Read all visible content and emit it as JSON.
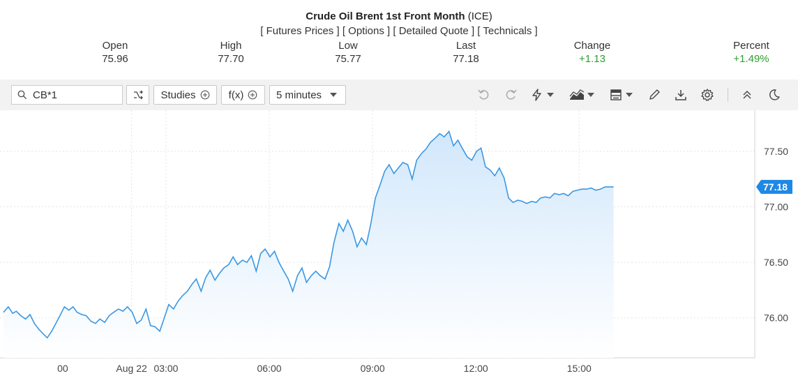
{
  "header": {
    "name": "Crude Oil Brent 1st Front Month",
    "exchange": "(ICE)",
    "links": [
      {
        "label": "[ Futures Prices ]"
      },
      {
        "label": "[ Options ]"
      },
      {
        "label": "[ Detailed Quote ]"
      },
      {
        "label": "[ Technicals ]"
      }
    ]
  },
  "quote": [
    {
      "label": "Open",
      "value": "75.96"
    },
    {
      "label": "High",
      "value": "77.70"
    },
    {
      "label": "Low",
      "value": "75.77"
    },
    {
      "label": "Last",
      "value": "77.18"
    },
    {
      "label": "Change",
      "value": "+1.13"
    },
    {
      "label": "Percent",
      "value": "+1.49%"
    }
  ],
  "toolbar": {
    "symbol": "CB*1",
    "studies_label": "Studies",
    "fx_label": "f(x)",
    "interval_label": "5 minutes",
    "icons": [
      "undo-icon",
      "redo-icon",
      "lightning-icon",
      "area-chart-icon",
      "template-icon",
      "pencil-icon",
      "download-icon",
      "gear-icon",
      "collapse-icon",
      "moon-icon"
    ]
  },
  "colors": {
    "line": "#3b97e3",
    "fill_top": "#cfe6fb",
    "positive": "#2ca02c",
    "last_tag": "#1e88e5"
  },
  "chart_data": {
    "type": "area",
    "title": "",
    "xlabel": "",
    "ylabel": "",
    "x_tick_labels": [
      "00",
      "Aug 22",
      "03:00",
      "06:00",
      "09:00",
      "12:00",
      "15:00"
    ],
    "x_tick_hours": [
      0,
      2,
      3,
      6,
      9,
      12,
      15
    ],
    "y_ticks": [
      76.0,
      76.5,
      77.0,
      77.5
    ],
    "y_tick_labels": [
      "76.00",
      "76.50",
      "77.00",
      "77.50"
    ],
    "ylim": [
      75.64,
      77.82
    ],
    "xlim_hours": [
      -1.72,
      20.1
    ],
    "grid": true,
    "last_value_label": "77.18",
    "series": [
      {
        "x_hours": [
          -1.72,
          -1.58,
          -1.45,
          -1.35,
          -1.22,
          -1.08,
          -0.95,
          -0.82,
          -0.7,
          -0.58,
          -0.45,
          -0.32,
          -0.2,
          -0.08,
          0.05,
          0.18,
          0.3,
          0.42,
          0.55,
          0.68,
          0.82,
          0.95,
          1.08,
          1.22,
          1.35,
          1.48,
          1.62,
          1.75,
          1.88,
          2.02,
          2.15,
          2.28,
          2.42,
          2.55,
          2.68,
          2.82,
          2.95,
          3.08,
          3.22,
          3.35,
          3.48,
          3.62,
          3.75,
          3.88,
          4.02,
          4.15,
          4.28,
          4.42,
          4.55,
          4.68,
          4.82,
          4.95,
          5.08,
          5.22,
          5.35,
          5.48,
          5.62,
          5.75,
          5.88,
          6.02,
          6.15,
          6.28,
          6.42,
          6.55,
          6.68,
          6.82,
          6.95,
          7.08,
          7.22,
          7.35,
          7.48,
          7.62,
          7.75,
          7.88,
          8.02,
          8.15,
          8.28,
          8.42,
          8.55,
          8.68,
          8.82,
          8.95,
          9.08,
          9.22,
          9.35,
          9.48,
          9.62,
          9.75,
          9.88,
          10.02,
          10.15,
          10.28,
          10.42,
          10.55,
          10.68,
          10.82,
          10.95,
          11.08,
          11.22,
          11.35,
          11.48,
          11.62,
          11.75,
          11.88,
          12.02,
          12.15,
          12.28,
          12.42,
          12.55,
          12.68,
          12.82,
          12.95,
          13.08,
          13.22,
          13.35,
          13.48,
          13.62,
          13.75,
          13.88,
          14.02,
          14.15,
          14.28,
          14.42,
          14.55,
          14.68,
          14.82,
          14.95,
          15.08,
          15.22,
          15.35,
          15.48,
          15.62,
          15.75,
          15.88,
          16.0
        ],
        "values": [
          76.05,
          76.1,
          76.04,
          76.06,
          76.02,
          75.99,
          76.03,
          75.95,
          75.9,
          75.86,
          75.82,
          75.88,
          75.95,
          76.02,
          76.1,
          76.07,
          76.1,
          76.05,
          76.03,
          76.02,
          75.97,
          75.95,
          75.99,
          75.96,
          76.02,
          76.05,
          76.08,
          76.06,
          76.1,
          76.05,
          75.95,
          75.98,
          76.08,
          75.93,
          75.92,
          75.88,
          76.0,
          76.12,
          76.08,
          76.15,
          76.2,
          76.24,
          76.3,
          76.35,
          76.24,
          76.36,
          76.43,
          76.34,
          76.4,
          76.45,
          76.48,
          76.55,
          76.48,
          76.52,
          76.5,
          76.56,
          76.42,
          76.58,
          76.62,
          76.55,
          76.6,
          76.5,
          76.42,
          76.35,
          76.24,
          76.38,
          76.45,
          76.32,
          76.38,
          76.42,
          76.38,
          76.35,
          76.46,
          76.68,
          76.85,
          76.78,
          76.88,
          76.78,
          76.64,
          76.72,
          76.66,
          76.85,
          77.08,
          77.2,
          77.32,
          77.38,
          77.3,
          77.35,
          77.4,
          77.38,
          77.25,
          77.42,
          77.48,
          77.52,
          77.58,
          77.62,
          77.66,
          77.63,
          77.68,
          77.55,
          77.6,
          77.52,
          77.45,
          77.42,
          77.5,
          77.53,
          77.36,
          77.33,
          77.28,
          77.35,
          77.26,
          77.08,
          77.04,
          77.06,
          77.05,
          77.03,
          77.05,
          77.04,
          77.08,
          77.09,
          77.08,
          77.12,
          77.11,
          77.12,
          77.1,
          77.14,
          77.15,
          77.16,
          77.16,
          77.17,
          77.15,
          77.16,
          77.18,
          77.18,
          77.18
        ]
      }
    ]
  }
}
